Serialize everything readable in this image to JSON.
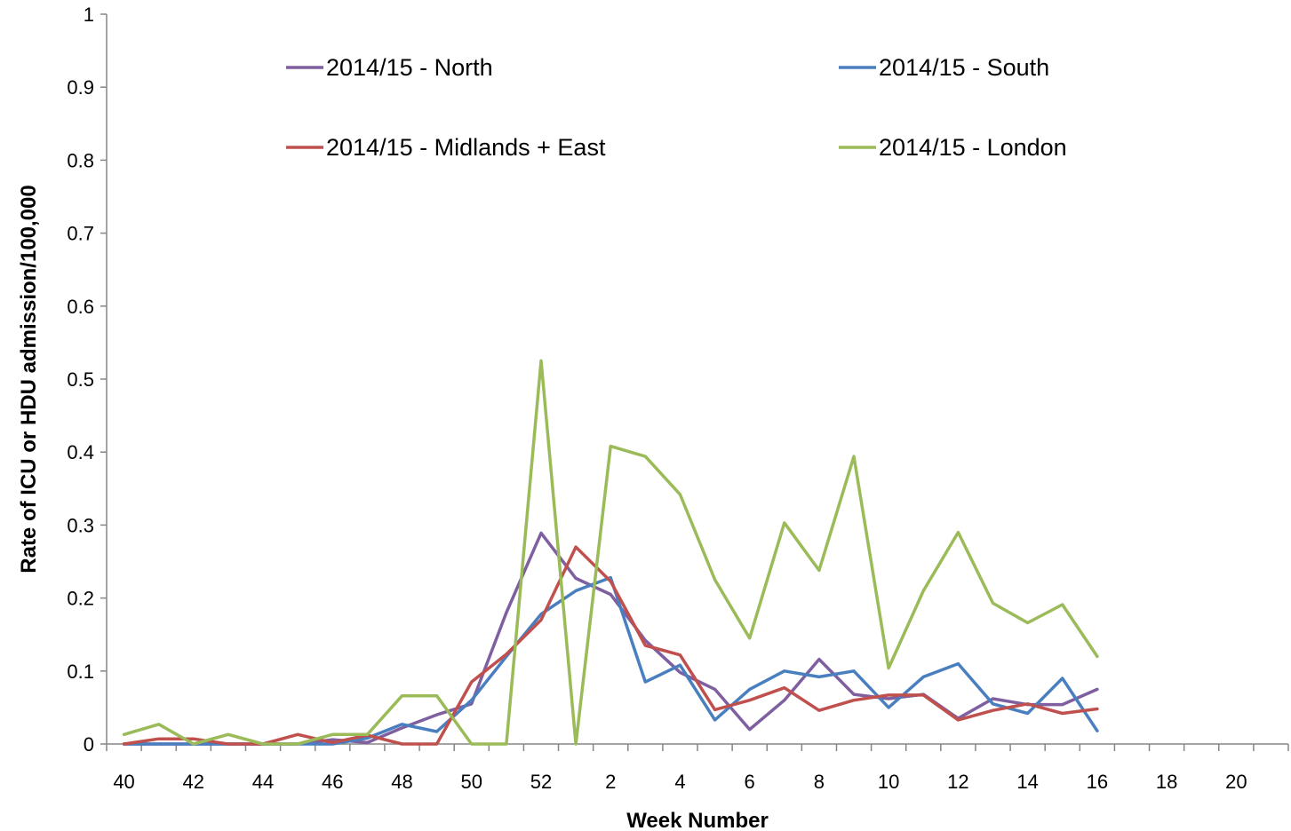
{
  "chart_data": {
    "type": "line",
    "title": "",
    "xlabel": "Week Number",
    "ylabel": "Rate of ICU or HDU admission/100,000",
    "ylim": [
      0,
      1
    ],
    "yticks": [
      "0",
      "0.1",
      "0.2",
      "0.3",
      "0.4",
      "0.5",
      "0.6",
      "0.7",
      "0.8",
      "0.9",
      "1"
    ],
    "x_categories": [
      "40",
      "41",
      "42",
      "43",
      "44",
      "45",
      "46",
      "47",
      "48",
      "49",
      "50",
      "51",
      "52",
      "53",
      "1",
      "2",
      "3",
      "4",
      "5",
      "6",
      "7",
      "8",
      "9",
      "10",
      "11",
      "12",
      "13",
      "14",
      "15",
      "16",
      "17",
      "18",
      "19",
      "20"
    ],
    "xtick_labels": [
      "40",
      "42",
      "44",
      "46",
      "48",
      "50",
      "52",
      "2",
      "4",
      "6",
      "8",
      "10",
      "12",
      "14",
      "16",
      "18",
      "20"
    ],
    "grid": false,
    "legend": {
      "position": "top",
      "columns": 2
    },
    "series": [
      {
        "name": "2014/15 - North",
        "color": "#7f5f9f",
        "values": [
          0,
          0,
          0,
          0,
          0,
          0,
          0.006,
          0.002,
          0.022,
          0.04,
          0.055,
          0.18,
          0.289,
          0.227,
          0.205,
          0.142,
          0.098,
          0.075,
          0.02,
          0.06,
          0.116,
          0.068,
          0.062,
          0.068,
          0.035,
          0.062,
          0.054,
          0.054,
          0.075
        ]
      },
      {
        "name": "2014/15 - South",
        "color": "#4a7fbf",
        "values": [
          0,
          0,
          0,
          0,
          0,
          0,
          0,
          0.008,
          0.027,
          0.017,
          0.06,
          0.12,
          0.178,
          0.21,
          0.228,
          0.085,
          0.108,
          0.033,
          0.075,
          0.1,
          0.092,
          0.1,
          0.05,
          0.092,
          0.11,
          0.055,
          0.042,
          0.09,
          0.018
        ]
      },
      {
        "name": "2014/15 - Midlands + East",
        "color": "#c0504d",
        "values": [
          0,
          0.007,
          0.007,
          0,
          0,
          0.013,
          0.002,
          0.012,
          0,
          0,
          0.085,
          0.123,
          0.17,
          0.27,
          0.223,
          0.135,
          0.122,
          0.047,
          0.06,
          0.077,
          0.046,
          0.06,
          0.067,
          0.067,
          0.033,
          0.046,
          0.055,
          0.042,
          0.048
        ]
      },
      {
        "name": "2014/15 - London",
        "color": "#9bbb59",
        "values": [
          0.013,
          0.027,
          0,
          0.013,
          0,
          0,
          0.013,
          0.013,
          0.066,
          0.066,
          0,
          0,
          0.525,
          0,
          0.408,
          0.394,
          0.342,
          0.225,
          0.145,
          0.303,
          0.238,
          0.394,
          0.104,
          0.21,
          0.29,
          0.193,
          0.166,
          0.191,
          0.12
        ]
      }
    ]
  }
}
